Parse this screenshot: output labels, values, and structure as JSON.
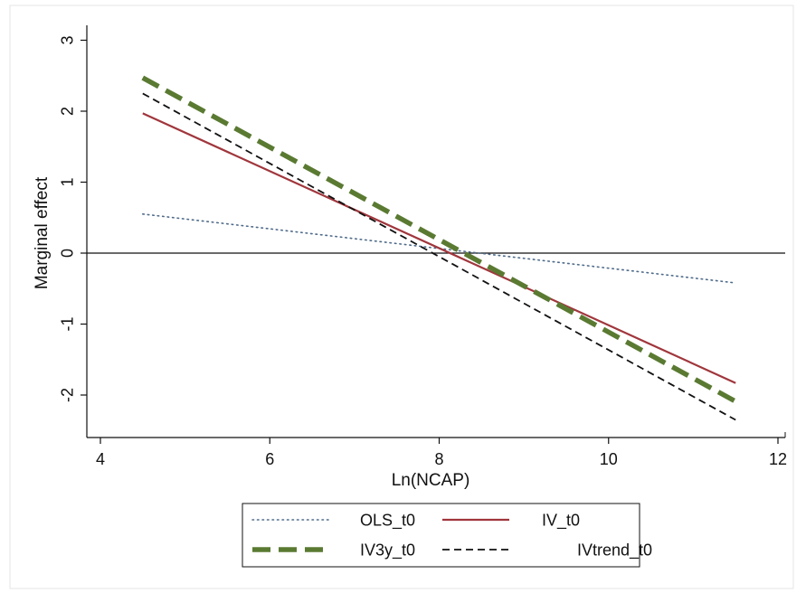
{
  "chart_data": {
    "type": "line",
    "title": "",
    "xlabel": "Ln(NCAP)",
    "ylabel": "Marginal effect",
    "xlim": [
      4,
      12
    ],
    "ylim": [
      -2.5,
      3.2
    ],
    "x_ticks": [
      4,
      6,
      8,
      10,
      12
    ],
    "y_ticks": [
      -2,
      -1,
      0,
      1,
      2,
      3
    ],
    "x_tick_labels": [
      "4",
      "6",
      "8",
      "10",
      "12"
    ],
    "y_tick_labels": [
      "-2",
      "-1",
      "0",
      "1",
      "2",
      "3"
    ],
    "reference_line_y": 0,
    "grid": false,
    "legend_position": "bottom",
    "series": [
      {
        "name": "OLS_t0",
        "color": "#4f6b8a",
        "style": "dotted",
        "x": [
          4.5,
          11.5
        ],
        "y": [
          0.55,
          -0.42
        ]
      },
      {
        "name": "IV_t0",
        "color": "#a0363c",
        "style": "solid",
        "x": [
          4.5,
          11.5
        ],
        "y": [
          1.97,
          -1.83
        ]
      },
      {
        "name": "IV3y_t0",
        "color": "#5a7a32",
        "style": "thick-dashed",
        "x": [
          4.5,
          11.5
        ],
        "y": [
          2.47,
          -2.09
        ]
      },
      {
        "name": "IVtrend_t0",
        "color": "#111111",
        "style": "dashed",
        "x": [
          4.5,
          11.5
        ],
        "y": [
          2.25,
          -2.35
        ]
      }
    ]
  }
}
